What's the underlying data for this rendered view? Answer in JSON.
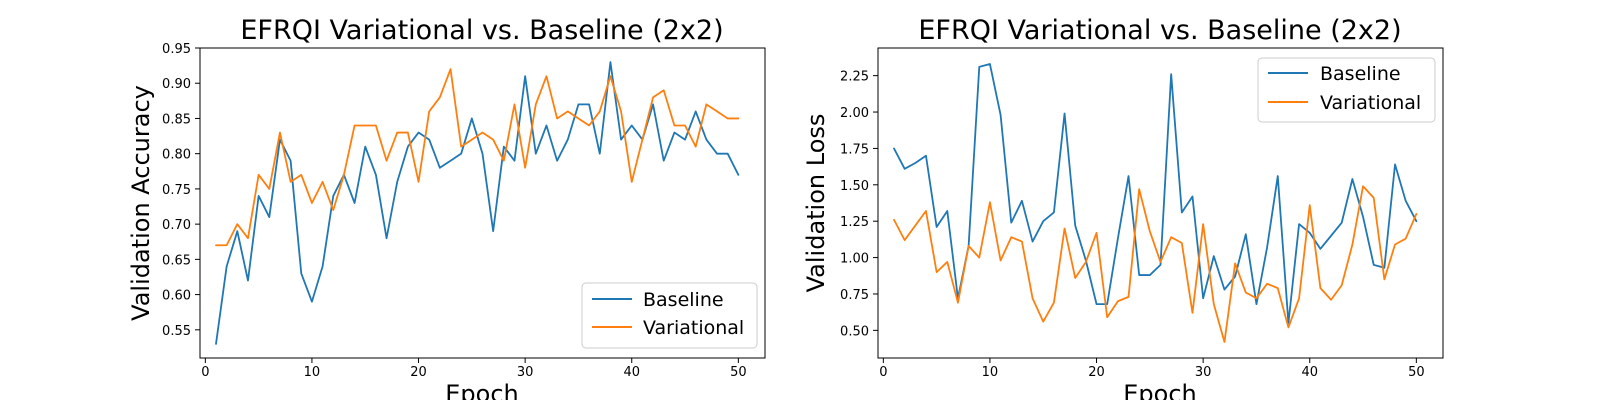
{
  "chart_data": [
    {
      "type": "line",
      "title": "EFRQI Variational vs. Baseline (2x2)",
      "xlabel": "Epoch",
      "ylabel": "Validation Accuracy",
      "xlim": [
        -0.5,
        52.5
      ],
      "ylim": [
        0.51,
        0.95
      ],
      "xticks": [
        0,
        10,
        20,
        30,
        40,
        50
      ],
      "yticks": [
        0.55,
        0.6,
        0.65,
        0.7,
        0.75,
        0.8,
        0.85,
        0.9,
        0.95
      ],
      "legend_position": "lower-right",
      "grid": false,
      "x": [
        1,
        2,
        3,
        4,
        5,
        6,
        7,
        8,
        9,
        10,
        11,
        12,
        13,
        14,
        15,
        16,
        17,
        18,
        19,
        20,
        21,
        22,
        23,
        24,
        25,
        26,
        27,
        28,
        29,
        30,
        31,
        32,
        33,
        34,
        35,
        36,
        37,
        38,
        39,
        40,
        41,
        42,
        43,
        44,
        45,
        46,
        47,
        48,
        49,
        50
      ],
      "series": [
        {
          "name": "Baseline",
          "color": "#1f77b4",
          "values": [
            0.53,
            0.64,
            0.69,
            0.62,
            0.74,
            0.71,
            0.82,
            0.79,
            0.63,
            0.59,
            0.64,
            0.74,
            0.77,
            0.73,
            0.81,
            0.77,
            0.68,
            0.76,
            0.81,
            0.83,
            0.82,
            0.78,
            0.79,
            0.8,
            0.85,
            0.8,
            0.69,
            0.81,
            0.79,
            0.91,
            0.8,
            0.84,
            0.79,
            0.82,
            0.87,
            0.87,
            0.8,
            0.93,
            0.82,
            0.84,
            0.82,
            0.87,
            0.79,
            0.83,
            0.82,
            0.86,
            0.82,
            0.8,
            0.8,
            0.77
          ]
        },
        {
          "name": "Variational",
          "color": "#ff7f0e",
          "values": [
            0.67,
            0.67,
            0.7,
            0.68,
            0.77,
            0.75,
            0.83,
            0.76,
            0.77,
            0.73,
            0.76,
            0.72,
            0.77,
            0.84,
            0.84,
            0.84,
            0.79,
            0.83,
            0.83,
            0.76,
            0.86,
            0.88,
            0.92,
            0.81,
            0.82,
            0.83,
            0.82,
            0.79,
            0.87,
            0.78,
            0.87,
            0.91,
            0.85,
            0.86,
            0.85,
            0.84,
            0.86,
            0.91,
            0.86,
            0.76,
            0.82,
            0.88,
            0.89,
            0.84,
            0.84,
            0.81,
            0.87,
            0.86,
            0.85,
            0.85
          ]
        }
      ]
    },
    {
      "type": "line",
      "title": "EFRQI Variational vs. Baseline (2x2)",
      "xlabel": "Epoch",
      "ylabel": "Validation Loss",
      "xlim": [
        -0.5,
        52.5
      ],
      "ylim": [
        0.31,
        2.44
      ],
      "xticks": [
        0,
        10,
        20,
        30,
        40,
        50
      ],
      "yticks": [
        0.5,
        0.75,
        1.0,
        1.25,
        1.5,
        1.75,
        2.0,
        2.25
      ],
      "legend_position": "upper-right",
      "grid": false,
      "x": [
        1,
        2,
        3,
        4,
        5,
        6,
        7,
        8,
        9,
        10,
        11,
        12,
        13,
        14,
        15,
        16,
        17,
        18,
        19,
        20,
        21,
        22,
        23,
        24,
        25,
        26,
        27,
        28,
        29,
        30,
        31,
        32,
        33,
        34,
        35,
        36,
        37,
        38,
        39,
        40,
        41,
        42,
        43,
        44,
        45,
        46,
        47,
        48,
        49,
        50
      ],
      "series": [
        {
          "name": "Baseline",
          "color": "#1f77b4",
          "values": [
            1.75,
            1.61,
            1.65,
            1.7,
            1.21,
            1.32,
            0.72,
            1.08,
            2.31,
            2.33,
            1.98,
            1.24,
            1.39,
            1.11,
            1.25,
            1.31,
            1.99,
            1.22,
            0.98,
            0.68,
            0.68,
            1.13,
            1.56,
            0.88,
            0.88,
            0.95,
            2.26,
            1.31,
            1.42,
            0.72,
            1.01,
            0.78,
            0.87,
            1.16,
            0.68,
            1.07,
            1.56,
            0.55,
            1.23,
            1.17,
            1.06,
            1.15,
            1.24,
            1.54,
            1.28,
            0.95,
            0.93,
            1.64,
            1.39,
            1.25
          ]
        },
        {
          "name": "Variational",
          "color": "#ff7f0e",
          "values": [
            1.26,
            1.12,
            1.22,
            1.32,
            0.9,
            0.97,
            0.69,
            1.08,
            1.0,
            1.38,
            0.98,
            1.14,
            1.11,
            0.72,
            0.56,
            0.69,
            1.2,
            0.86,
            0.97,
            1.17,
            0.59,
            0.7,
            0.73,
            1.47,
            1.18,
            0.97,
            1.14,
            1.1,
            0.62,
            1.23,
            0.68,
            0.42,
            0.96,
            0.76,
            0.72,
            0.82,
            0.79,
            0.52,
            0.72,
            1.36,
            0.79,
            0.71,
            0.81,
            1.09,
            1.49,
            1.41,
            0.85,
            1.09,
            1.13,
            1.3
          ]
        }
      ]
    }
  ]
}
